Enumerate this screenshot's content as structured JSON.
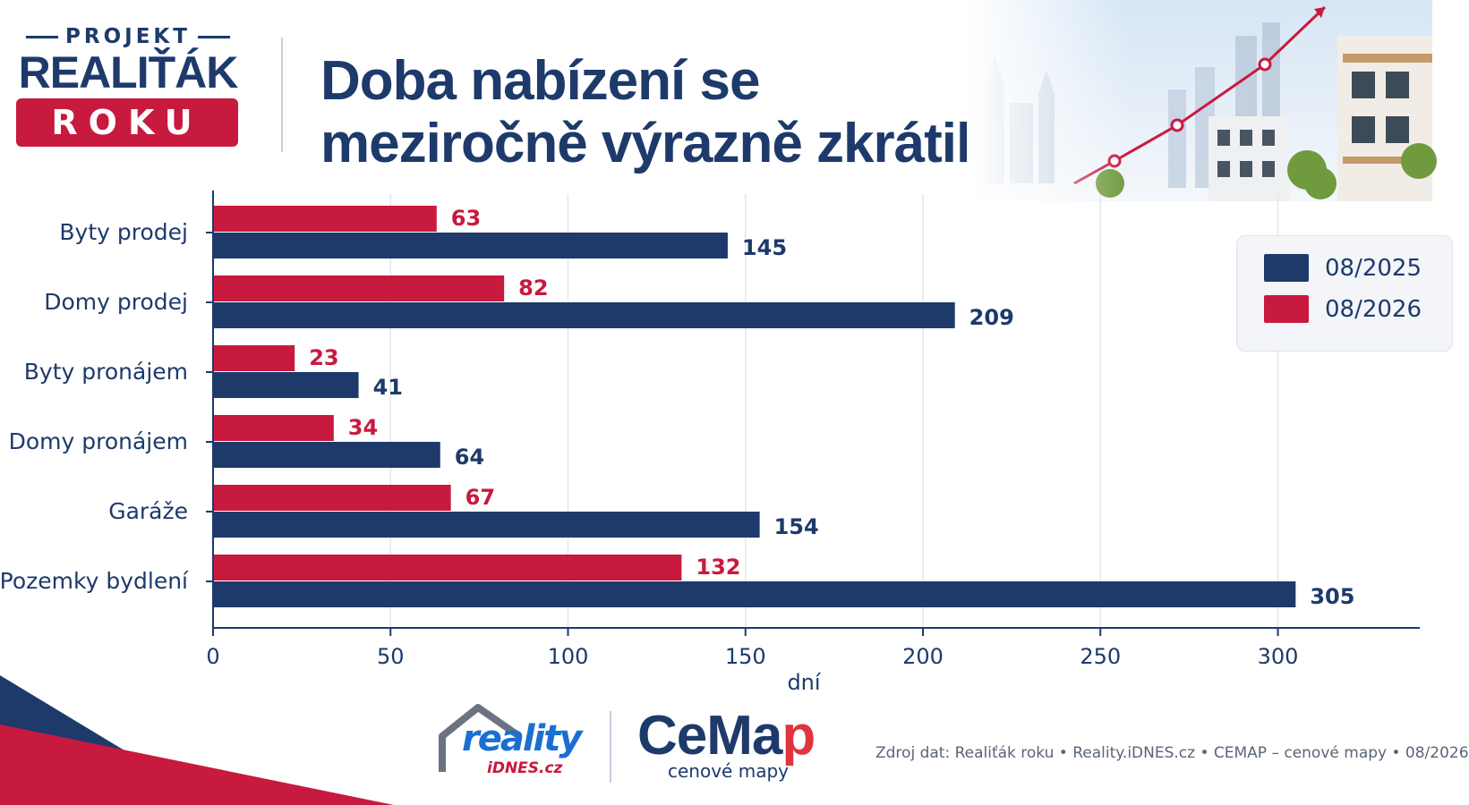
{
  "header": {
    "logo_top": "PROJEKT",
    "logo_main": "REALIŤÁK",
    "logo_badge": "ROKU",
    "title_line1": "Doba nabízení se",
    "title_line2": "meziročně výrazně zkrátila"
  },
  "colors": {
    "navy": "#1d3a6b",
    "red": "#c8193f"
  },
  "chart_data": {
    "type": "bar",
    "orientation": "horizontal",
    "categories": [
      "Byty prodej",
      "Domy prodej",
      "Byty pronájem",
      "Domy pronájem",
      "Garáže",
      "Pozemky bydlení"
    ],
    "series": [
      {
        "name": "08/2025",
        "color": "#1d3a6b",
        "values": [
          145,
          209,
          41,
          64,
          154,
          305
        ]
      },
      {
        "name": "08/2026",
        "color": "#c8193f",
        "values": [
          63,
          82,
          23,
          34,
          67,
          132
        ]
      }
    ],
    "xlabel": "dní",
    "xlim": [
      0,
      340
    ],
    "xticks": [
      0,
      50,
      100,
      150,
      200,
      250,
      300
    ],
    "grid": true,
    "legend_position": "right"
  },
  "footer": {
    "reality_word": "reality",
    "reality_sub": "iDNES.cz",
    "cemap_word_a": "CeMa",
    "cemap_word_b": "p",
    "cemap_sub": "cenové mapy",
    "source": "Zdroj dat: Realiťák roku • Reality.iDNES.cz • CEMAP – cenové mapy • 08/2026"
  }
}
